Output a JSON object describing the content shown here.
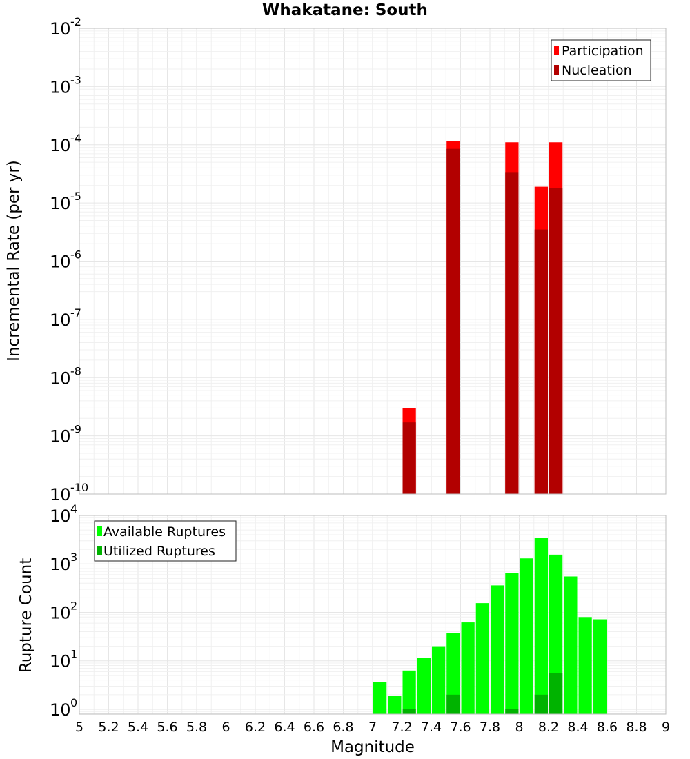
{
  "chart_data": [
    {
      "type": "bar",
      "title": "Whakatane: South",
      "xlabel": "Magnitude",
      "ylabel": "Incremental Rate (per yr)",
      "yscale": "log",
      "xlim": [
        5,
        9
      ],
      "ylim_exponents": [
        -10,
        -2
      ],
      "ytick_exponents": [
        -10,
        -9,
        -8,
        -7,
        -6,
        -5,
        -4,
        -3,
        -2
      ],
      "grid": true,
      "legend_position": "top-right",
      "series": [
        {
          "name": "Participation",
          "color": "#ff0000",
          "points": [
            {
              "x": 7.25,
              "y": 3e-09
            },
            {
              "x": 7.55,
              "y": 0.000115
            },
            {
              "x": 7.95,
              "y": 0.00011
            },
            {
              "x": 8.15,
              "y": 1.9e-05
            },
            {
              "x": 8.25,
              "y": 0.00011
            }
          ]
        },
        {
          "name": "Nucleation",
          "color": "#b20000",
          "points": [
            {
              "x": 7.25,
              "y": 1.7e-09
            },
            {
              "x": 7.55,
              "y": 8.5e-05
            },
            {
              "x": 7.95,
              "y": 3.3e-05
            },
            {
              "x": 8.15,
              "y": 3.5e-06
            },
            {
              "x": 8.25,
              "y": 1.8e-05
            }
          ]
        }
      ]
    },
    {
      "type": "bar",
      "xlabel": "Magnitude",
      "ylabel": "Rupture Count",
      "yscale": "log",
      "xlim": [
        5,
        9
      ],
      "ylim_exponents": [
        -0.1,
        4
      ],
      "ytick_exponents": [
        0,
        1,
        2,
        3,
        4
      ],
      "xticks": [
        "5",
        "5.2",
        "5.4",
        "5.6",
        "5.8",
        "6",
        "6.2",
        "6.4",
        "6.6",
        "6.8",
        "7",
        "7.2",
        "7.4",
        "7.6",
        "7.8",
        "8",
        "8.2",
        "8.4",
        "8.6",
        "8.8",
        "9"
      ],
      "grid": true,
      "legend_position": "top-left",
      "series": [
        {
          "name": "Available Ruptures",
          "color": "#00ff00",
          "points": [
            {
              "x": 7.05,
              "y": 3.6
            },
            {
              "x": 7.15,
              "y": 1.9
            },
            {
              "x": 7.25,
              "y": 6.3
            },
            {
              "x": 7.35,
              "y": 11.5
            },
            {
              "x": 7.45,
              "y": 20
            },
            {
              "x": 7.55,
              "y": 38
            },
            {
              "x": 7.65,
              "y": 62
            },
            {
              "x": 7.75,
              "y": 155
            },
            {
              "x": 7.85,
              "y": 360
            },
            {
              "x": 7.95,
              "y": 640
            },
            {
              "x": 8.05,
              "y": 1300
            },
            {
              "x": 8.15,
              "y": 3400
            },
            {
              "x": 8.25,
              "y": 1550
            },
            {
              "x": 8.35,
              "y": 550
            },
            {
              "x": 8.45,
              "y": 80
            },
            {
              "x": 8.55,
              "y": 72
            }
          ]
        },
        {
          "name": "Utilized Ruptures",
          "color": "#00b300",
          "points": [
            {
              "x": 7.25,
              "y": 1
            },
            {
              "x": 7.55,
              "y": 2
            },
            {
              "x": 7.95,
              "y": 1
            },
            {
              "x": 8.15,
              "y": 2
            },
            {
              "x": 8.25,
              "y": 5.6
            }
          ]
        }
      ]
    }
  ]
}
